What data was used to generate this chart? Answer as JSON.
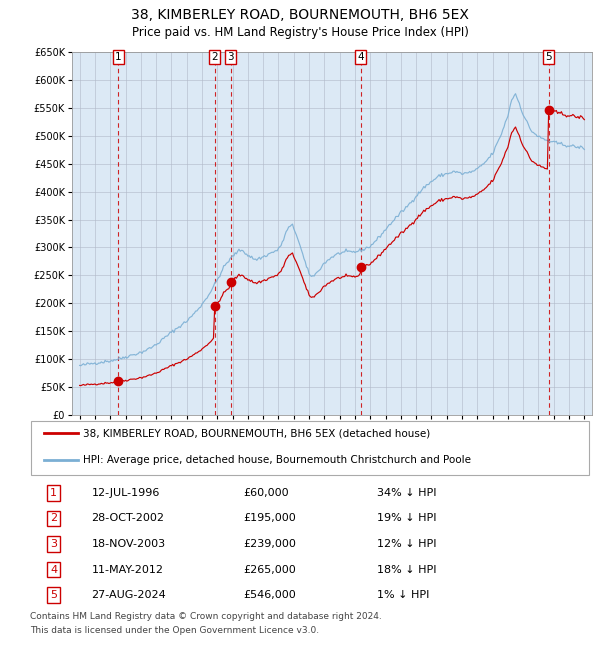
{
  "title": "38, KIMBERLEY ROAD, BOURNEMOUTH, BH6 5EX",
  "subtitle": "Price paid vs. HM Land Registry's House Price Index (HPI)",
  "legend_line1": "38, KIMBERLEY ROAD, BOURNEMOUTH, BH6 5EX (detached house)",
  "legend_line2": "HPI: Average price, detached house, Bournemouth Christchurch and Poole",
  "footer1": "Contains HM Land Registry data © Crown copyright and database right 2024.",
  "footer2": "This data is licensed under the Open Government Licence v3.0.",
  "sales": [
    {
      "num": 1,
      "date_label": "12-JUL-1996",
      "price": 60000,
      "pct": "34% ↓ HPI",
      "x_year": 1996.53
    },
    {
      "num": 2,
      "date_label": "28-OCT-2002",
      "price": 195000,
      "pct": "19% ↓ HPI",
      "x_year": 2002.83
    },
    {
      "num": 3,
      "date_label": "18-NOV-2003",
      "price": 239000,
      "pct": "12% ↓ HPI",
      "x_year": 2003.88
    },
    {
      "num": 4,
      "date_label": "11-MAY-2012",
      "price": 265000,
      "pct": "18% ↓ HPI",
      "x_year": 2012.37
    },
    {
      "num": 5,
      "date_label": "27-AUG-2024",
      "price": 546000,
      "pct": "1% ↓ HPI",
      "x_year": 2024.66
    }
  ],
  "ylim": [
    0,
    650000
  ],
  "xlim": [
    1993.5,
    2027.5
  ],
  "hpi_color": "#7bafd4",
  "price_color": "#cc0000",
  "bg_color": "#dce9f5",
  "grid_color": "#b0b8c8",
  "sale_dot_color": "#cc0000",
  "sale_line_color": "#cc0000",
  "box_color": "#cc0000"
}
